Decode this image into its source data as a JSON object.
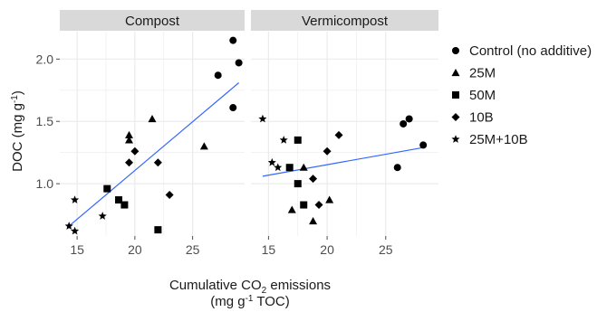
{
  "chart_data": {
    "type": "scatter",
    "facets": [
      {
        "label": "Compost",
        "points": [
          {
            "series": "Control (no additive)",
            "x": 28.5,
            "y": 2.15
          },
          {
            "series": "Control (no additive)",
            "x": 29.0,
            "y": 1.97
          },
          {
            "series": "Control (no additive)",
            "x": 27.2,
            "y": 1.87
          },
          {
            "series": "Control (no additive)",
            "x": 28.5,
            "y": 1.61
          },
          {
            "series": "25M",
            "x": 21.5,
            "y": 1.52
          },
          {
            "series": "25M",
            "x": 19.5,
            "y": 1.39
          },
          {
            "series": "25M",
            "x": 19.5,
            "y": 1.35
          },
          {
            "series": "25M",
            "x": 26.0,
            "y": 1.3
          },
          {
            "series": "50M",
            "x": 17.6,
            "y": 0.96
          },
          {
            "series": "50M",
            "x": 18.6,
            "y": 0.87
          },
          {
            "series": "50M",
            "x": 19.1,
            "y": 0.83
          },
          {
            "series": "50M",
            "x": 22.0,
            "y": 0.63
          },
          {
            "series": "10B",
            "x": 20.0,
            "y": 1.26
          },
          {
            "series": "10B",
            "x": 19.5,
            "y": 1.17
          },
          {
            "series": "10B",
            "x": 22.0,
            "y": 1.17
          },
          {
            "series": "10B",
            "x": 23.0,
            "y": 0.91
          },
          {
            "series": "25M+10B",
            "x": 14.8,
            "y": 0.87
          },
          {
            "series": "25M+10B",
            "x": 17.2,
            "y": 0.74
          },
          {
            "series": "25M+10B",
            "x": 14.3,
            "y": 0.66
          },
          {
            "series": "25M+10B",
            "x": 14.8,
            "y": 0.62
          }
        ],
        "fit": {
          "x": [
            14.3,
            29.0
          ],
          "y": [
            0.66,
            1.81
          ]
        }
      },
      {
        "label": "Vermicompost",
        "points": [
          {
            "series": "Control (no additive)",
            "x": 27.0,
            "y": 1.52
          },
          {
            "series": "Control (no additive)",
            "x": 26.5,
            "y": 1.48
          },
          {
            "series": "Control (no additive)",
            "x": 28.2,
            "y": 1.31
          },
          {
            "series": "Control (no additive)",
            "x": 26.0,
            "y": 1.13
          },
          {
            "series": "25M",
            "x": 18.0,
            "y": 1.13
          },
          {
            "series": "25M",
            "x": 20.2,
            "y": 0.87
          },
          {
            "series": "25M",
            "x": 17.0,
            "y": 0.79
          },
          {
            "series": "25M",
            "x": 18.8,
            "y": 0.7
          },
          {
            "series": "50M",
            "x": 17.5,
            "y": 1.35
          },
          {
            "series": "50M",
            "x": 16.8,
            "y": 1.13
          },
          {
            "series": "50M",
            "x": 17.5,
            "y": 1.0
          },
          {
            "series": "50M",
            "x": 18.0,
            "y": 0.83
          },
          {
            "series": "10B",
            "x": 21.0,
            "y": 1.39
          },
          {
            "series": "10B",
            "x": 20.0,
            "y": 1.26
          },
          {
            "series": "10B",
            "x": 18.8,
            "y": 1.04
          },
          {
            "series": "10B",
            "x": 19.3,
            "y": 0.83
          },
          {
            "series": "25M+10B",
            "x": 14.5,
            "y": 1.52
          },
          {
            "series": "25M+10B",
            "x": 16.3,
            "y": 1.35
          },
          {
            "series": "25M+10B",
            "x": 15.3,
            "y": 1.17
          },
          {
            "series": "25M+10B",
            "x": 15.8,
            "y": 1.13
          }
        ],
        "fit": {
          "x": [
            14.5,
            28.2
          ],
          "y": [
            1.06,
            1.29
          ]
        }
      }
    ],
    "series": [
      {
        "name": "Control (no additive)",
        "shape": "circle"
      },
      {
        "name": "25M",
        "shape": "triangle"
      },
      {
        "name": "50M",
        "shape": "square"
      },
      {
        "name": "10B",
        "shape": "diamond"
      },
      {
        "name": "25M+10B",
        "shape": "star"
      }
    ],
    "xlim": [
      13.5,
      29.5
    ],
    "ylim": [
      0.58,
      2.22
    ],
    "xticks": [
      15,
      20,
      25
    ],
    "yticks": [
      1.0,
      1.5,
      2.0
    ],
    "xtick_labels": [
      "15",
      "20",
      "25"
    ],
    "ytick_labels": [
      "1.0",
      "1.5",
      "2.0"
    ],
    "xlabel_line1": "Cumulative CO",
    "xlabel_sub": "2",
    "xlabel_line1_end": " emissions",
    "xlabel_line2_start": "(mg g",
    "xlabel_line2_sup": "-1",
    "xlabel_line2_end": " TOC)",
    "ylabel_start": "DOC (mg g",
    "ylabel_sup": "-1",
    "ylabel_end": ")",
    "grid": true,
    "legend_position": "right",
    "colors": {
      "panel_bg": "#ffffff",
      "grid": "#ebebeb",
      "strip_bg": "#d9d9d9",
      "points": "#000000",
      "fit_line": "#3366ff"
    }
  }
}
